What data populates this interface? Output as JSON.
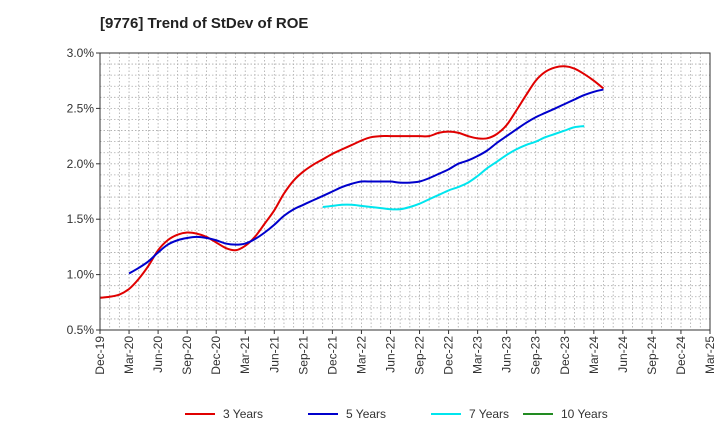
{
  "chart_data": {
    "type": "line",
    "title": "[9776]  Trend of StDev of ROE",
    "xlabel": "",
    "ylabel": "",
    "x_ticks": [
      "Dec-19",
      "Mar-20",
      "Jun-20",
      "Sep-20",
      "Dec-20",
      "Mar-21",
      "Jun-21",
      "Sep-21",
      "Dec-21",
      "Mar-22",
      "Jun-22",
      "Sep-22",
      "Dec-22",
      "Mar-23",
      "Jun-23",
      "Sep-23",
      "Dec-23",
      "Mar-24",
      "Jun-24",
      "Sep-24",
      "Dec-24",
      "Mar-25"
    ],
    "y_ticks": [
      "0.5%",
      "1.0%",
      "1.5%",
      "2.0%",
      "2.5%",
      "3.0%"
    ],
    "ylim": [
      0.5,
      3.0
    ],
    "y_unit": "%",
    "grid": true,
    "legend_position": "bottom",
    "series": [
      {
        "name": "3 Years",
        "color": "#e00000",
        "points": [
          [
            0,
            0.79
          ],
          [
            0.33,
            0.8
          ],
          [
            0.67,
            0.82
          ],
          [
            1,
            0.87
          ],
          [
            1.33,
            0.96
          ],
          [
            1.67,
            1.08
          ],
          [
            2,
            1.22
          ],
          [
            2.33,
            1.31
          ],
          [
            2.67,
            1.36
          ],
          [
            3,
            1.38
          ],
          [
            3.33,
            1.37
          ],
          [
            3.67,
            1.34
          ],
          [
            4,
            1.29
          ],
          [
            4.33,
            1.24
          ],
          [
            4.67,
            1.22
          ],
          [
            5,
            1.26
          ],
          [
            5.33,
            1.34
          ],
          [
            5.67,
            1.46
          ],
          [
            6,
            1.58
          ],
          [
            6.33,
            1.73
          ],
          [
            6.67,
            1.85
          ],
          [
            7,
            1.93
          ],
          [
            7.33,
            1.99
          ],
          [
            7.67,
            2.04
          ],
          [
            8,
            2.09
          ],
          [
            8.33,
            2.13
          ],
          [
            8.67,
            2.17
          ],
          [
            9,
            2.21
          ],
          [
            9.33,
            2.24
          ],
          [
            9.67,
            2.25
          ],
          [
            10,
            2.25
          ],
          [
            10.33,
            2.25
          ],
          [
            10.67,
            2.25
          ],
          [
            11,
            2.25
          ],
          [
            11.33,
            2.25
          ],
          [
            11.67,
            2.28
          ],
          [
            12,
            2.29
          ],
          [
            12.33,
            2.28
          ],
          [
            12.67,
            2.25
          ],
          [
            13,
            2.23
          ],
          [
            13.33,
            2.23
          ],
          [
            13.67,
            2.27
          ],
          [
            14,
            2.35
          ],
          [
            14.33,
            2.48
          ],
          [
            14.67,
            2.62
          ],
          [
            15,
            2.75
          ],
          [
            15.33,
            2.83
          ],
          [
            15.67,
            2.87
          ],
          [
            16,
            2.88
          ],
          [
            16.33,
            2.86
          ],
          [
            16.67,
            2.81
          ],
          [
            17,
            2.75
          ],
          [
            17.33,
            2.68
          ]
        ]
      },
      {
        "name": "5 Years",
        "color": "#0000cc",
        "points": [
          [
            1,
            1.01
          ],
          [
            1.33,
            1.06
          ],
          [
            1.67,
            1.12
          ],
          [
            2,
            1.2
          ],
          [
            2.33,
            1.27
          ],
          [
            2.67,
            1.31
          ],
          [
            3,
            1.33
          ],
          [
            3.33,
            1.34
          ],
          [
            3.67,
            1.33
          ],
          [
            4,
            1.31
          ],
          [
            4.33,
            1.28
          ],
          [
            4.67,
            1.27
          ],
          [
            5,
            1.28
          ],
          [
            5.33,
            1.32
          ],
          [
            5.67,
            1.38
          ],
          [
            6,
            1.45
          ],
          [
            6.33,
            1.53
          ],
          [
            6.67,
            1.59
          ],
          [
            7,
            1.63
          ],
          [
            7.33,
            1.67
          ],
          [
            7.67,
            1.71
          ],
          [
            8,
            1.75
          ],
          [
            8.33,
            1.79
          ],
          [
            8.67,
            1.82
          ],
          [
            9,
            1.84
          ],
          [
            9.33,
            1.84
          ],
          [
            9.67,
            1.84
          ],
          [
            10,
            1.84
          ],
          [
            10.33,
            1.83
          ],
          [
            10.67,
            1.83
          ],
          [
            11,
            1.84
          ],
          [
            11.33,
            1.87
          ],
          [
            11.67,
            1.91
          ],
          [
            12,
            1.95
          ],
          [
            12.33,
            2.0
          ],
          [
            12.67,
            2.03
          ],
          [
            13,
            2.07
          ],
          [
            13.33,
            2.12
          ],
          [
            13.67,
            2.19
          ],
          [
            14,
            2.25
          ],
          [
            14.33,
            2.31
          ],
          [
            14.67,
            2.37
          ],
          [
            15,
            2.42
          ],
          [
            15.33,
            2.46
          ],
          [
            15.67,
            2.5
          ],
          [
            16,
            2.54
          ],
          [
            16.33,
            2.58
          ],
          [
            16.67,
            2.62
          ],
          [
            17,
            2.65
          ],
          [
            17.33,
            2.67
          ]
        ]
      },
      {
        "name": "7 Years",
        "color": "#00e5ee",
        "points": [
          [
            7.67,
            1.61
          ],
          [
            8,
            1.62
          ],
          [
            8.33,
            1.63
          ],
          [
            8.67,
            1.63
          ],
          [
            9,
            1.62
          ],
          [
            9.33,
            1.61
          ],
          [
            9.67,
            1.6
          ],
          [
            10,
            1.59
          ],
          [
            10.33,
            1.59
          ],
          [
            10.67,
            1.61
          ],
          [
            11,
            1.64
          ],
          [
            11.33,
            1.68
          ],
          [
            11.67,
            1.72
          ],
          [
            12,
            1.76
          ],
          [
            12.33,
            1.79
          ],
          [
            12.67,
            1.83
          ],
          [
            13,
            1.89
          ],
          [
            13.33,
            1.96
          ],
          [
            13.67,
            2.02
          ],
          [
            14,
            2.08
          ],
          [
            14.33,
            2.13
          ],
          [
            14.67,
            2.17
          ],
          [
            15,
            2.2
          ],
          [
            15.33,
            2.24
          ],
          [
            15.67,
            2.27
          ],
          [
            16,
            2.3
          ],
          [
            16.33,
            2.33
          ],
          [
            16.67,
            2.34
          ]
        ]
      },
      {
        "name": "10 Years",
        "color": "#228b22",
        "points": []
      }
    ]
  }
}
